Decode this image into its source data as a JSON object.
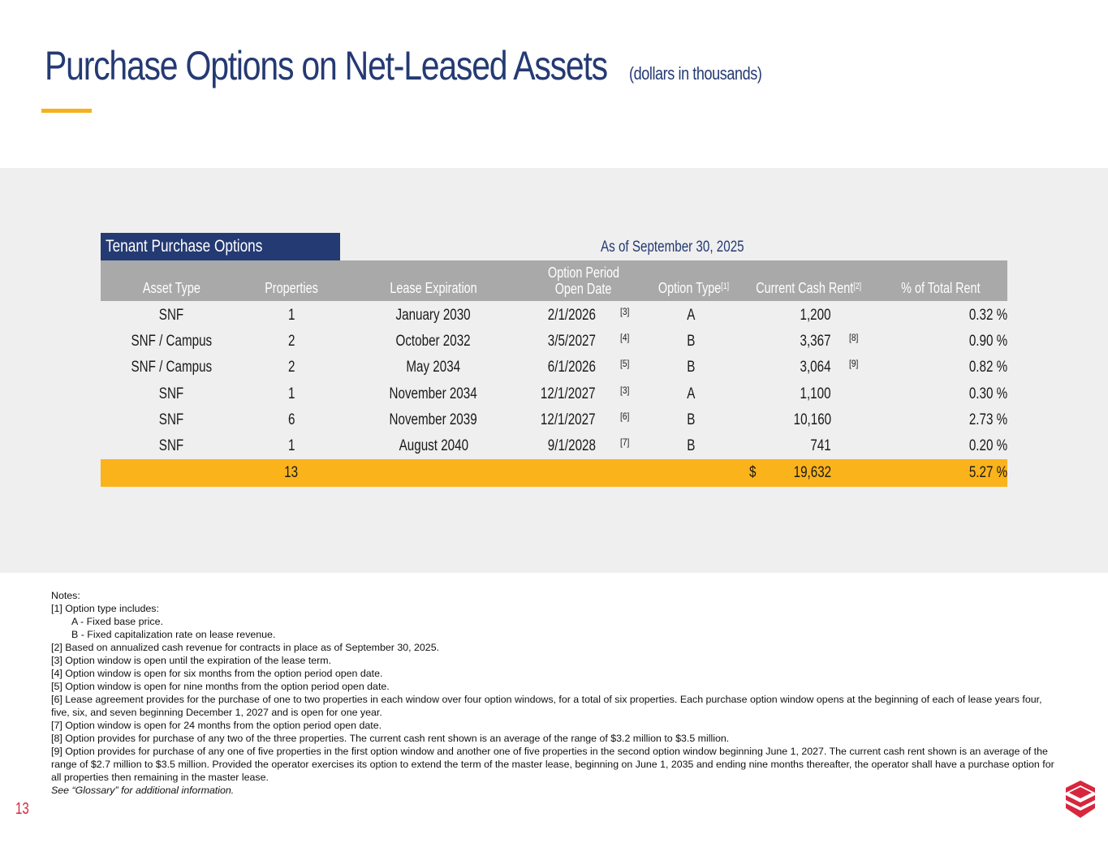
{
  "title": {
    "main": "Purchase Options on Net-Leased Assets",
    "sub": "(dollars in thousands)"
  },
  "table": {
    "label": "Tenant Purchase Options",
    "as_of": "As of September 30, 2025",
    "headers": {
      "asset_type": "Asset Type",
      "properties": "Properties",
      "lease_expiration": "Lease Expiration",
      "option_period_line1": "Option Period",
      "option_period_line2": "Open Date",
      "option_type": "Option Type",
      "option_type_note": "[1]",
      "current_cash_rent": "Current Cash Rent",
      "current_cash_rent_note": "[2]",
      "pct_total_rent": "% of Total Rent"
    },
    "rows": [
      {
        "asset_type": "SNF",
        "properties": "1",
        "lease_expiration": "January 2030",
        "open_date": "2/1/2026",
        "open_note": "[3]",
        "option_type": "A",
        "rent": "1,200",
        "rent_note": "",
        "pct": "0.32 %"
      },
      {
        "asset_type": "SNF / Campus",
        "properties": "2",
        "lease_expiration": "October 2032",
        "open_date": "3/5/2027",
        "open_note": "[4]",
        "option_type": "B",
        "rent": "3,367",
        "rent_note": "[8]",
        "pct": "0.90 %"
      },
      {
        "asset_type": "SNF / Campus",
        "properties": "2",
        "lease_expiration": "May 2034",
        "open_date": "6/1/2026",
        "open_note": "[5]",
        "option_type": "B",
        "rent": "3,064",
        "rent_note": "[9]",
        "pct": "0.82 %"
      },
      {
        "asset_type": "SNF",
        "properties": "1",
        "lease_expiration": "November 2034",
        "open_date": "12/1/2027",
        "open_note": "[3]",
        "option_type": "A",
        "rent": "1,100",
        "rent_note": "",
        "pct": "0.30 %"
      },
      {
        "asset_type": "SNF",
        "properties": "6",
        "lease_expiration": "November 2039",
        "open_date": "12/1/2027",
        "open_note": "[6]",
        "option_type": "B",
        "rent": "10,160",
        "rent_note": "",
        "pct": "2.73 %"
      },
      {
        "asset_type": "SNF",
        "properties": "1",
        "lease_expiration": "August 2040",
        "open_date": "9/1/2028",
        "open_note": "[7]",
        "option_type": "B",
        "rent": "741",
        "rent_note": "",
        "pct": "0.20 %"
      }
    ],
    "total": {
      "properties": "13",
      "currency": "$",
      "rent": "19,632",
      "pct": "5.27 %"
    }
  },
  "notes": {
    "heading": "Notes:",
    "n1": "[1]  Option type includes:",
    "n1a": "A - Fixed base price.",
    "n1b": "B - Fixed capitalization rate on lease revenue.",
    "n2": "[2] Based on annualized cash revenue for contracts in place as of September 30, 2025.",
    "n3": "[3] Option window is open until the expiration of the lease term.",
    "n4": "[4] Option window is open for six months from the option period open date.",
    "n5": "[5] Option window is open for nine months from the option period open date.",
    "n6": "[6] Lease agreement provides for the purchase of one to two properties in each window over four option windows, for a total of six properties.  Each purchase option window opens at the beginning of each of lease years four, five, six, and seven beginning December 1, 2027 and is open for one year.",
    "n7": "[7] Option window is open for 24 months from the option period open date.",
    "n8": "[8] Option provides for purchase of any two of the three properties. The current cash rent shown is an average of the range of $3.2 million to $3.5 million.",
    "n9": "[9] Option provides for purchase of any one of five properties in the first option window and another one of five properties in the second option window beginning June 1, 2027. The current cash rent shown is an average of the range of $2.7 million to $3.5 million. Provided the operator exercises its option to extend the term of the master lease, beginning on June 1, 2035 and ending nine months thereafter, the operator shall have a purchase option for all properties then remaining in the master lease.",
    "glossary": "See “Glossary” for additional information."
  },
  "page_number": "13",
  "colors": {
    "navy": "#243a73",
    "gold": "#fbb31b",
    "accent_red": "#d7263d",
    "header_gray": "#a9a9a9",
    "band_gray": "#efefef"
  },
  "icons": {
    "logo": "layered-chevron-logo"
  }
}
